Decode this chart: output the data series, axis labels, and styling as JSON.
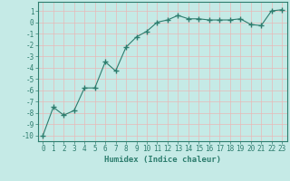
{
  "x": [
    0,
    1,
    2,
    3,
    4,
    5,
    6,
    7,
    8,
    9,
    10,
    11,
    12,
    13,
    14,
    15,
    16,
    17,
    18,
    19,
    20,
    21,
    22,
    23
  ],
  "y": [
    -10,
    -7.5,
    -8.2,
    -7.8,
    -5.8,
    -5.8,
    -3.5,
    -4.3,
    -2.2,
    -1.3,
    -0.8,
    0.0,
    0.2,
    0.6,
    0.3,
    0.3,
    0.2,
    0.2,
    0.2,
    0.3,
    -0.2,
    -0.3,
    1.0,
    1.1
  ],
  "line_color": "#2d7d6e",
  "marker": "+",
  "bg_color": "#c5eae6",
  "grid_color": "#e8b8b8",
  "xlabel": "Humidex (Indice chaleur)",
  "xlim": [
    -0.5,
    23.5
  ],
  "ylim": [
    -10.5,
    1.8
  ],
  "yticks": [
    1,
    0,
    -1,
    -2,
    -3,
    -4,
    -5,
    -6,
    -7,
    -8,
    -9,
    -10
  ],
  "xticks": [
    0,
    1,
    2,
    3,
    4,
    5,
    6,
    7,
    8,
    9,
    10,
    11,
    12,
    13,
    14,
    15,
    16,
    17,
    18,
    19,
    20,
    21,
    22,
    23
  ],
  "xlabel_fontsize": 6.5,
  "tick_fontsize": 5.5
}
